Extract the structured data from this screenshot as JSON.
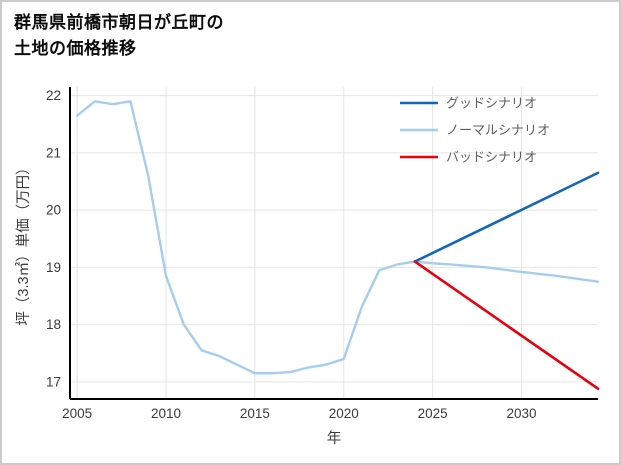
{
  "title": {
    "line1": "群馬県前橋市朝日が丘町の",
    "line2": "土地の価格推移"
  },
  "chart_data": {
    "type": "line",
    "title": "群馬県前橋市朝日が丘町の土地の価格推移",
    "xlabel": "年",
    "ylabel": "坪（3.3㎡）単価（万円）",
    "xlim": [
      2004.6,
      2034.3
    ],
    "ylim": [
      16.7,
      22.15
    ],
    "xticks": [
      2005,
      2010,
      2015,
      2020,
      2025,
      2030
    ],
    "yticks": [
      17,
      18,
      19,
      20,
      21,
      22
    ],
    "grid": true,
    "grid_color": "#e4e4e4",
    "axis_color": "#000000",
    "legend_position": "top-right",
    "series": [
      {
        "name": "グッドシナリオ",
        "color": "#1467b8",
        "width": 2.6,
        "x": [
          2024,
          2034.3
        ],
        "y": [
          19.1,
          20.65
        ]
      },
      {
        "name": "ノーマルシナリオ",
        "color": "#a6cdf0",
        "width": 2.4,
        "x": [
          2005,
          2006,
          2007,
          2008,
          2009,
          2010,
          2011,
          2012,
          2013,
          2014,
          2015,
          2016,
          2017,
          2018,
          2019,
          2020,
          2021,
          2022,
          2023,
          2024,
          2025,
          2026,
          2028,
          2030,
          2032,
          2034.3
        ],
        "y": [
          21.65,
          21.9,
          21.85,
          21.9,
          20.6,
          18.85,
          18.0,
          17.55,
          17.45,
          17.3,
          17.15,
          17.15,
          17.17,
          17.25,
          17.3,
          17.4,
          18.3,
          18.95,
          19.05,
          19.1,
          19.07,
          19.05,
          19.0,
          18.92,
          18.85,
          18.75
        ]
      },
      {
        "name": "バッドシナリオ",
        "color": "#e8000d",
        "width": 2.6,
        "x": [
          2024,
          2034.3
        ],
        "y": [
          19.1,
          16.88
        ]
      }
    ]
  }
}
